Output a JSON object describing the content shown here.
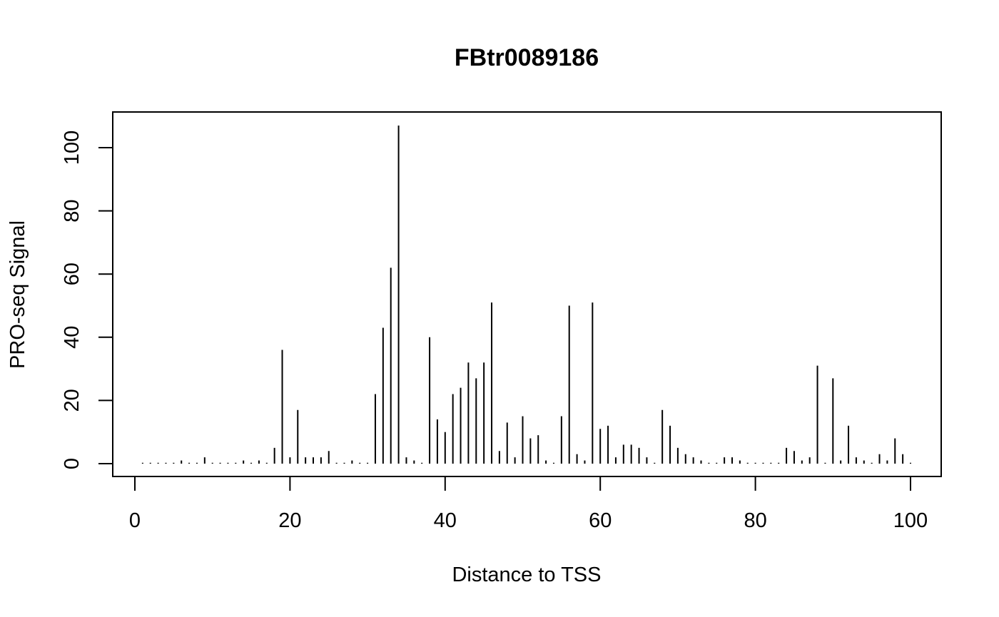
{
  "chart_data": {
    "type": "bar",
    "title": "FBtr0089186",
    "xlabel": "Distance to TSS",
    "ylabel": "PRO-seq Signal",
    "xlim": [
      1,
      100
    ],
    "ylim": [
      0,
      107
    ],
    "x_ticks": [
      0,
      20,
      40,
      60,
      80,
      100
    ],
    "y_ticks": [
      0,
      20,
      40,
      60,
      80,
      100
    ],
    "grid": false,
    "color": "#000000",
    "x": [
      1,
      2,
      3,
      4,
      5,
      6,
      7,
      8,
      9,
      10,
      11,
      12,
      13,
      14,
      15,
      16,
      17,
      18,
      19,
      20,
      21,
      22,
      23,
      24,
      25,
      26,
      27,
      28,
      29,
      30,
      31,
      32,
      33,
      34,
      35,
      36,
      37,
      38,
      39,
      40,
      41,
      42,
      43,
      44,
      45,
      46,
      47,
      48,
      49,
      50,
      51,
      52,
      53,
      54,
      55,
      56,
      57,
      58,
      59,
      60,
      61,
      62,
      63,
      64,
      65,
      66,
      67,
      68,
      69,
      70,
      71,
      72,
      73,
      74,
      75,
      76,
      77,
      78,
      79,
      80,
      81,
      82,
      83,
      84,
      85,
      86,
      87,
      88,
      89,
      90,
      91,
      92,
      93,
      94,
      95,
      96,
      97,
      98,
      99,
      100
    ],
    "values": [
      0,
      0,
      0,
      0,
      0,
      1,
      0,
      0,
      2,
      0,
      0,
      0,
      0,
      1,
      0,
      1,
      0,
      5,
      36,
      2,
      17,
      2,
      2,
      2,
      4,
      0,
      0,
      1,
      0,
      0,
      22,
      43,
      62,
      107,
      2,
      1,
      0,
      40,
      14,
      10,
      22,
      24,
      32,
      27,
      32,
      51,
      4,
      13,
      2,
      15,
      8,
      9,
      1,
      0,
      15,
      50,
      3,
      1,
      51,
      11,
      12,
      2,
      6,
      6,
      5,
      2,
      0,
      17,
      12,
      5,
      3,
      2,
      1,
      0,
      0,
      2,
      2,
      1,
      0,
      0,
      0,
      0,
      0,
      5,
      4,
      1,
      2,
      31,
      0,
      27,
      1,
      12,
      2,
      1,
      0,
      3,
      1,
      8,
      3,
      0
    ]
  }
}
